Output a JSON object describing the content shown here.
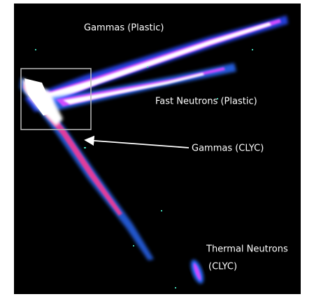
{
  "labels": [
    "Gammas (Plastic)",
    "Fast Neutrons (Plastic)",
    "Gammas (CLYC)",
    "Thermal Neutrons",
    "(CLYC)"
  ]
}
